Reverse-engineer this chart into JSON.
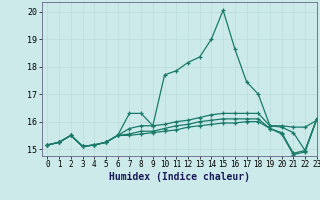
{
  "title": "",
  "xlabel": "Humidex (Indice chaleur)",
  "xlim": [
    -0.5,
    23
  ],
  "ylim": [
    14.75,
    20.35
  ],
  "yticks": [
    15,
    16,
    17,
    18,
    19,
    20
  ],
  "xticks": [
    0,
    1,
    2,
    3,
    4,
    5,
    6,
    7,
    8,
    9,
    10,
    11,
    12,
    13,
    14,
    15,
    16,
    17,
    18,
    19,
    20,
    21,
    22,
    23
  ],
  "bg_color": "#cceaea",
  "grid_color": "#bbdddd",
  "line_color": "#1a7a6a",
  "lines": [
    [
      15.15,
      15.25,
      15.5,
      15.1,
      15.15,
      15.25,
      15.5,
      16.3,
      16.3,
      15.85,
      17.7,
      17.85,
      18.15,
      18.35,
      19.0,
      20.05,
      18.65,
      17.45,
      17.0,
      15.85,
      15.8,
      15.6,
      14.95,
      16.1
    ],
    [
      15.15,
      15.25,
      15.5,
      15.1,
      15.15,
      15.25,
      15.5,
      15.75,
      15.85,
      15.85,
      15.9,
      16.0,
      16.05,
      16.15,
      16.25,
      16.3,
      16.3,
      16.3,
      16.3,
      15.85,
      15.85,
      15.8,
      15.8,
      16.05
    ],
    [
      15.15,
      15.25,
      15.5,
      15.1,
      15.15,
      15.25,
      15.5,
      15.55,
      15.65,
      15.65,
      15.75,
      15.85,
      15.9,
      16.0,
      16.05,
      16.1,
      16.1,
      16.1,
      16.1,
      15.75,
      15.6,
      14.85,
      14.95,
      16.1
    ],
    [
      15.15,
      15.25,
      15.5,
      15.1,
      15.15,
      15.25,
      15.5,
      15.5,
      15.55,
      15.6,
      15.65,
      15.7,
      15.8,
      15.85,
      15.9,
      15.95,
      15.95,
      16.0,
      16.0,
      15.75,
      15.55,
      14.8,
      14.9,
      16.1
    ]
  ]
}
